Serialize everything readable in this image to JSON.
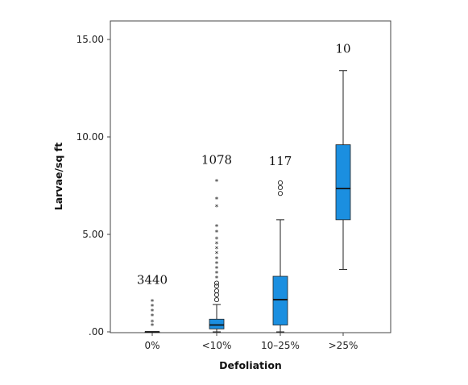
{
  "chart_data": {
    "type": "boxplot",
    "xlabel": "Defoliation",
    "ylabel": "Larvae/sq ft",
    "ylim": [
      0,
      15.5
    ],
    "yticks": [
      ".00",
      "5.00",
      "10.00",
      "15.00"
    ],
    "ytick_values": [
      0,
      5,
      10,
      15
    ],
    "categories": [
      "0%",
      "<10%",
      "10–25%",
      ">25%"
    ],
    "box_color": "#1b8fe0",
    "boxes": [
      {
        "category": "0%",
        "count_label": "3440",
        "min": 0,
        "q1": 0,
        "median": 0,
        "q3": 0,
        "max": 0,
        "outliers_circle": [],
        "outliers_star": [
          0.3,
          0.5,
          0.8,
          1.05,
          1.3,
          1.55
        ]
      },
      {
        "category": "<10%",
        "count_label": "1078",
        "min": 0,
        "q1": 0.15,
        "median": 0.35,
        "q3": 0.65,
        "max": 1.4,
        "outliers_circle": [
          1.65,
          1.9,
          2.1,
          2.35,
          2.5
        ],
        "outliers_star": [
          2.75,
          3.0,
          3.25,
          3.5,
          3.75,
          4.0,
          4.25,
          4.5,
          4.75,
          5.1,
          5.4,
          6.4,
          6.8,
          7.7
        ]
      },
      {
        "category": "10–25%",
        "count_label": "117",
        "min": 0,
        "q1": 0.35,
        "median": 1.65,
        "q3": 2.85,
        "max": 5.75,
        "outliers_circle": [
          7.1,
          7.4,
          7.65
        ],
        "outliers_star": []
      },
      {
        "category": ">25%",
        "count_label": "10",
        "min": 3.2,
        "q1": 5.75,
        "median": 7.35,
        "q3": 9.6,
        "max": 13.4,
        "outliers_circle": [],
        "outliers_star": []
      }
    ]
  }
}
